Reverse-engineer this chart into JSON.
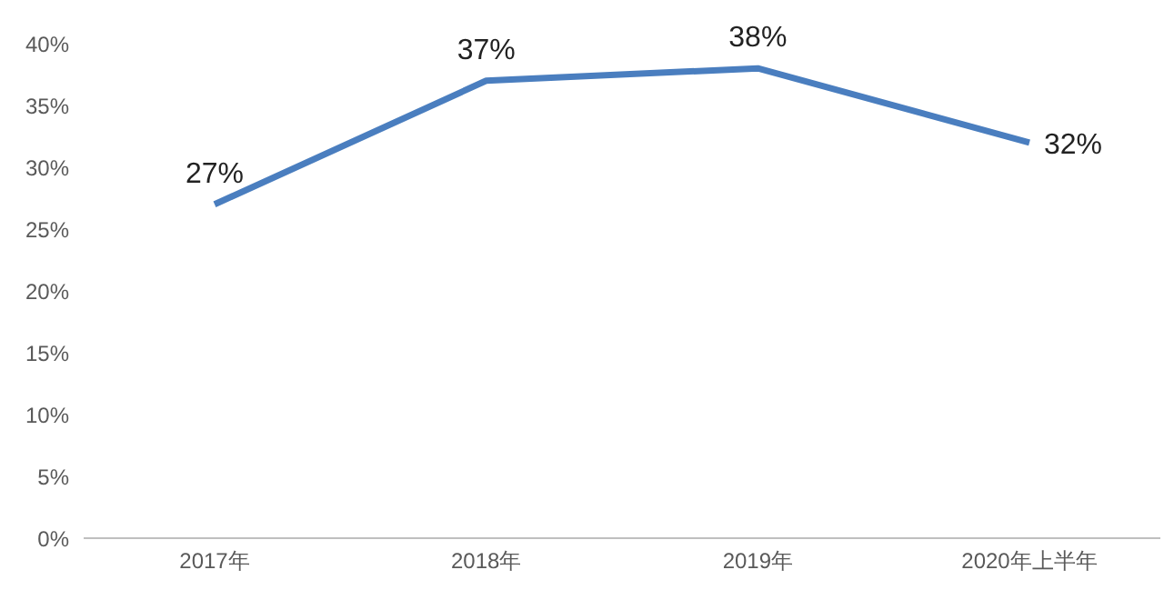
{
  "chart_data": {
    "type": "line",
    "categories": [
      "2017年",
      "2018年",
      "2019年",
      "2020年上半年"
    ],
    "series": [
      {
        "color": "#4a7ebf",
        "values": [
          27,
          37,
          38,
          32
        ],
        "value_labels": [
          "27%",
          "37%",
          "38%",
          "32%"
        ]
      }
    ],
    "ylim": [
      0,
      40
    ],
    "yticks": [
      {
        "value": 0,
        "label": "0%"
      },
      {
        "value": 5,
        "label": "5%"
      },
      {
        "value": 10,
        "label": "10%"
      },
      {
        "value": 15,
        "label": "15%"
      },
      {
        "value": 20,
        "label": "20%"
      },
      {
        "value": 25,
        "label": "25%"
      },
      {
        "value": 30,
        "label": "30%"
      },
      {
        "value": 35,
        "label": "35%"
      },
      {
        "value": 40,
        "label": "40%"
      }
    ],
    "grid": false,
    "legend": false,
    "marker": "none",
    "line_style": "solid"
  }
}
